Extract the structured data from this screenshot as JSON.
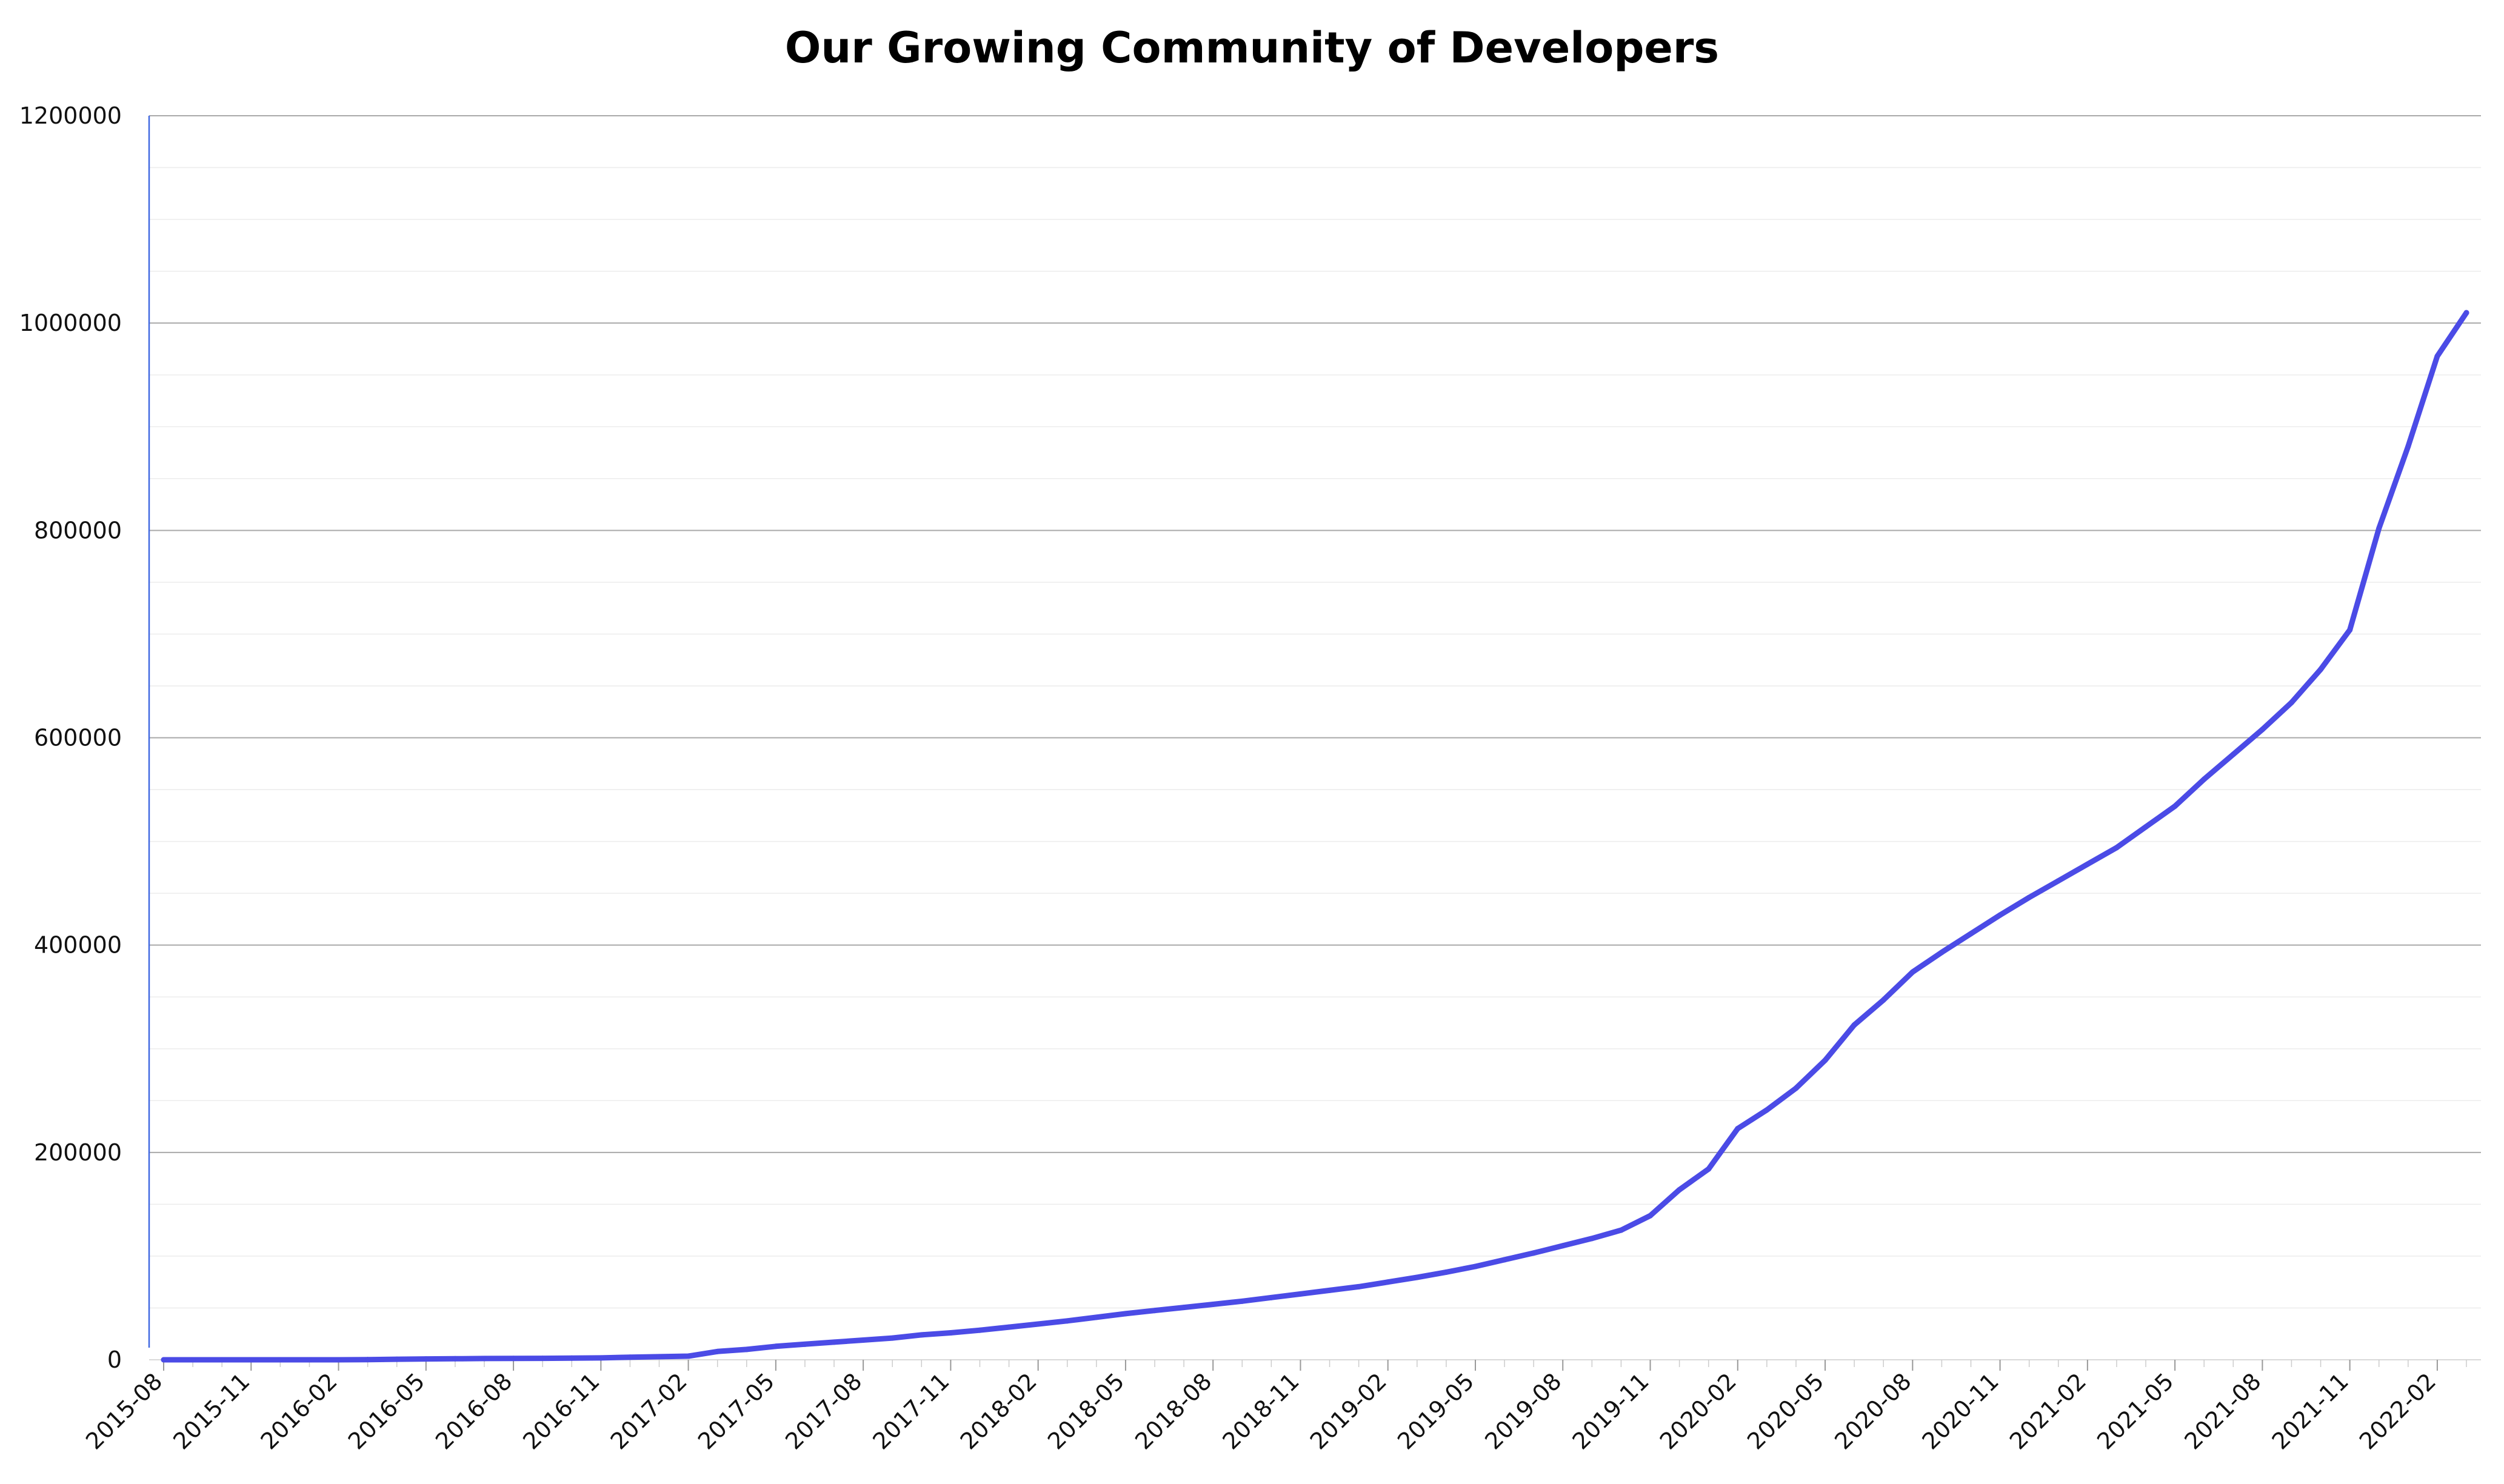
{
  "chart_data": {
    "type": "line",
    "title": "Our Growing Community of Developers",
    "xlabel": "",
    "ylabel": "",
    "ylim": [
      0,
      1200000
    ],
    "y_ticks": [
      "0",
      "200000",
      "400000",
      "600000",
      "800000",
      "1000000",
      "1200000"
    ],
    "x_tick_labels": [
      "2015-08",
      "2015-11",
      "2016-02",
      "2016-05",
      "2016-08",
      "2016-11",
      "2017-02",
      "2017-05",
      "2017-08",
      "2017-11",
      "2018-02",
      "2018-05",
      "2018-08",
      "2018-11",
      "2019-02",
      "2019-05",
      "2019-08",
      "2019-11",
      "2020-02",
      "2020-05",
      "2020-08",
      "2020-11",
      "2021-02",
      "2021-05",
      "2021-08",
      "2021-11",
      "2022-02"
    ],
    "x_range": [
      "2015-08",
      "2022-03"
    ],
    "grid": true,
    "legend": "none",
    "colors": {
      "line": "#4b4be6",
      "major_grid": "#a9a9a9",
      "minor_grid": "#ececec",
      "y_axis": "#4169e1"
    },
    "series": [
      {
        "x": [
          "2015-08",
          "2015-09",
          "2015-10",
          "2015-11",
          "2015-12",
          "2016-01",
          "2016-02",
          "2016-03",
          "2016-04",
          "2016-05",
          "2016-06",
          "2016-07",
          "2016-08",
          "2016-09",
          "2016-10",
          "2016-11",
          "2016-12",
          "2017-01",
          "2017-02",
          "2017-03",
          "2017-04",
          "2017-05",
          "2017-06",
          "2017-07",
          "2017-08",
          "2017-09",
          "2017-10",
          "2017-11",
          "2017-12",
          "2018-01",
          "2018-02",
          "2018-03",
          "2018-04",
          "2018-05",
          "2018-06",
          "2018-07",
          "2018-08",
          "2018-09",
          "2018-10",
          "2018-11",
          "2018-12",
          "2019-01",
          "2019-02",
          "2019-03",
          "2019-04",
          "2019-05",
          "2019-06",
          "2019-07",
          "2019-08",
          "2019-09",
          "2019-10",
          "2019-11",
          "2019-12",
          "2020-01",
          "2020-02",
          "2020-03",
          "2020-04",
          "2020-05",
          "2020-06",
          "2020-07",
          "2020-08",
          "2020-09",
          "2020-10",
          "2020-11",
          "2020-12",
          "2021-01",
          "2021-02",
          "2021-03",
          "2021-04",
          "2021-05",
          "2021-06",
          "2021-07",
          "2021-08",
          "2021-09",
          "2021-10",
          "2021-11",
          "2021-12",
          "2022-01",
          "2022-02",
          "2022-03"
        ],
        "values": [
          0,
          0,
          0,
          0,
          0,
          0,
          0,
          200,
          500,
          800,
          1000,
          1200,
          1300,
          1400,
          1600,
          1800,
          2500,
          3000,
          3500,
          8000,
          10000,
          13000,
          15000,
          17000,
          19000,
          21000,
          24000,
          26000,
          28500,
          31500,
          34500,
          37500,
          41000,
          44500,
          47500,
          50500,
          53500,
          56500,
          60000,
          63500,
          67000,
          70500,
          75000,
          79500,
          84500,
          90000,
          96500,
          103000,
          110000,
          117000,
          125000,
          139000,
          164000,
          184000,
          223000,
          241000,
          262000,
          289000,
          323000,
          347000,
          374000,
          393000,
          411000,
          429000,
          446000,
          462000,
          478000,
          494000,
          514000,
          534000,
          560000,
          584000,
          608000,
          634000,
          666000,
          704000,
          802000,
          881000,
          968000,
          1010000
        ]
      }
    ]
  }
}
